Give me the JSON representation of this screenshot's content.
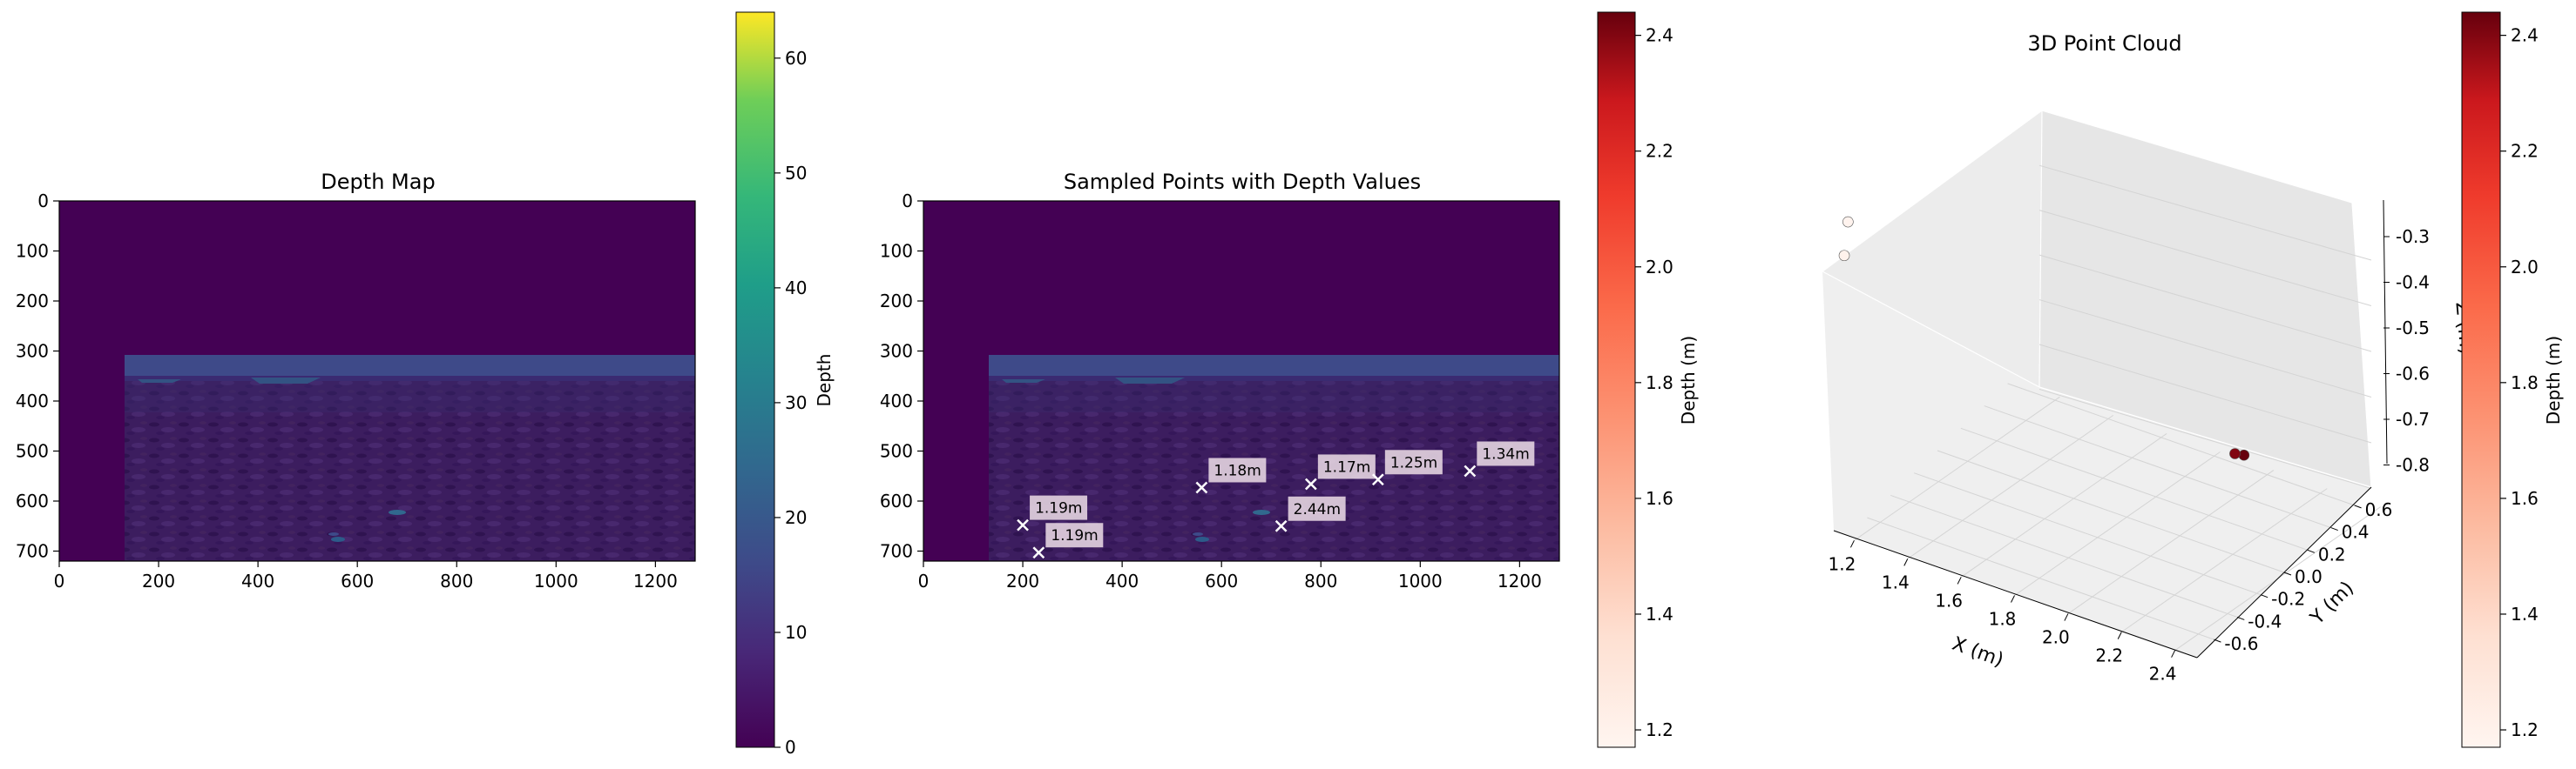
{
  "chart_data": [
    {
      "type": "heatmap",
      "title": "Depth Map",
      "x_ticks": [
        "0",
        "200",
        "400",
        "600",
        "800",
        "1000",
        "1200"
      ],
      "y_ticks": [
        "0",
        "100",
        "200",
        "300",
        "400",
        "500",
        "600",
        "700"
      ],
      "xlim": [
        0,
        1280
      ],
      "ylim": [
        720,
        0
      ],
      "colormap": "viridis",
      "colorbar": {
        "label": "Depth",
        "range": [
          0,
          64
        ],
        "ticks": [
          "0",
          "10",
          "20",
          "30",
          "40",
          "50",
          "60"
        ]
      }
    },
    {
      "type": "heatmap",
      "title": "Sampled Points with Depth Values",
      "x_ticks": [
        "0",
        "200",
        "400",
        "600",
        "800",
        "1000",
        "1200"
      ],
      "y_ticks": [
        "0",
        "100",
        "200",
        "300",
        "400",
        "500",
        "600",
        "700"
      ],
      "xlim": [
        0,
        1280
      ],
      "ylim": [
        720,
        0
      ],
      "colormap": "viridis",
      "points": [
        {
          "x": 200,
          "y": 648,
          "label": "1.19m"
        },
        {
          "x": 232,
          "y": 703,
          "label": "1.19m"
        },
        {
          "x": 560,
          "y": 573,
          "label": "1.18m"
        },
        {
          "x": 780,
          "y": 566,
          "label": "1.17m"
        },
        {
          "x": 915,
          "y": 557,
          "label": "1.25m"
        },
        {
          "x": 1100,
          "y": 540,
          "label": "1.34m"
        },
        {
          "x": 720,
          "y": 650,
          "label": "2.44m"
        }
      ],
      "colorbar": {
        "label": "Depth (m)",
        "range": [
          1.17,
          2.44
        ],
        "ticks": [
          "1.2",
          "1.4",
          "1.6",
          "1.8",
          "2.0",
          "2.2",
          "2.4"
        ],
        "colormap": "Reds"
      }
    },
    {
      "type": "scatter",
      "title": "3D Point Cloud",
      "xlabel": "X (m)",
      "ylabel": "Y (m)",
      "zlabel": "Z (m)",
      "x_ticks": [
        "1.2",
        "1.4",
        "1.6",
        "1.8",
        "2.0",
        "2.2",
        "2.4"
      ],
      "y_ticks": [
        "-0.6",
        "-0.4",
        "-0.2",
        "0.0",
        "0.2",
        "0.4",
        "0.6"
      ],
      "z_ticks": [
        "-0.3",
        "-0.4",
        "-0.5",
        "-0.6",
        "-0.7",
        "-0.8"
      ],
      "points": [
        {
          "x": 1.19,
          "y": -0.55,
          "z": -0.35,
          "depth": 1.19
        },
        {
          "x": 1.18,
          "y": -0.5,
          "z": -0.3,
          "depth": 1.18
        },
        {
          "x": 2.44,
          "y": -0.3,
          "z": -0.55,
          "depth": 2.44
        },
        {
          "x": 2.4,
          "y": -0.28,
          "z": -0.56,
          "depth": 2.4
        }
      ],
      "colorbar": {
        "label": "Depth (m)",
        "range": [
          1.17,
          2.44
        ],
        "ticks": [
          "1.2",
          "1.4",
          "1.6",
          "1.8",
          "2.0",
          "2.2",
          "2.4"
        ],
        "colormap": "Reds"
      }
    }
  ]
}
